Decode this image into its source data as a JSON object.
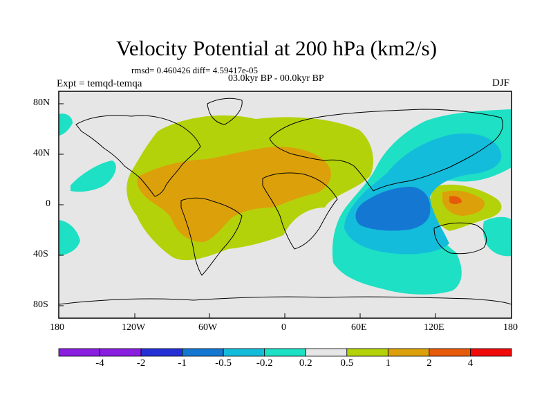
{
  "title": "Velocity Potential at 200 hPa (km2/s)",
  "stats": "rmsd= 0.460426  diff= 4.59417e-05",
  "period": "03.0kyr BP - 00.0kyr BP",
  "experiment": "Expt = temqd-temqa",
  "season": "DJF",
  "lat_labels": [
    "80N",
    "40N",
    "0",
    "40S",
    "80S"
  ],
  "lon_labels": [
    "180",
    "120W",
    "60W",
    "0",
    "60E",
    "120E",
    "180"
  ],
  "colorbar": {
    "labels": [
      "-4",
      "-2",
      "-1",
      "-0.5",
      "-0.2",
      "0.2",
      "0.5",
      "1",
      "2",
      "4"
    ],
    "colors": [
      "#8a1ee0",
      "#2430d6",
      "#1478d2",
      "#14bcdc",
      "#1ee0c4",
      "#e6e6e6",
      "#b4d20a",
      "#dca00a",
      "#e65a0a",
      "#f00a0a"
    ]
  },
  "colors": {
    "neutral": "#e6e6e6",
    "pos1": "#b4d20a",
    "pos2": "#dca00a",
    "pos3": "#e65a0a",
    "neg1": "#1ee0c4",
    "neg2": "#14bcdc",
    "neg3": "#1478d2"
  }
}
